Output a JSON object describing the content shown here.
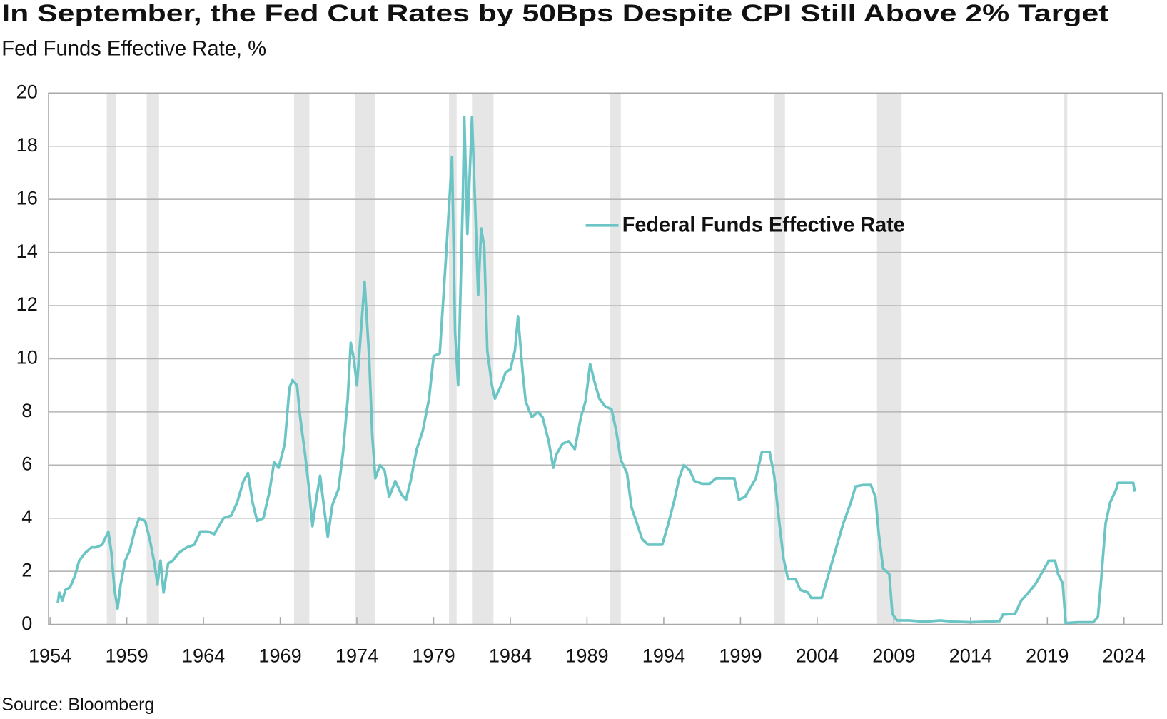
{
  "chart_data": {
    "type": "line",
    "title": "In September, the Fed Cut Rates by 50Bps Despite CPI Still Above 2% Target",
    "subtitle": "Fed Funds Effective Rate, %",
    "source": "Source: Bloomberg",
    "x": [
      1954.5,
      1954.6,
      1954.8,
      1955.0,
      1955.3,
      1955.6,
      1955.9,
      1956.3,
      1956.7,
      1957.0,
      1957.4,
      1957.8,
      1958.0,
      1958.2,
      1958.4,
      1958.6,
      1958.9,
      1959.2,
      1959.5,
      1959.8,
      1960.2,
      1960.5,
      1960.8,
      1961.0,
      1961.2,
      1961.4,
      1961.7,
      1962.0,
      1962.4,
      1962.9,
      1963.4,
      1963.8,
      1964.3,
      1964.7,
      1965.3,
      1965.8,
      1966.2,
      1966.6,
      1966.9,
      1967.2,
      1967.5,
      1967.9,
      1968.3,
      1968.6,
      1968.9,
      1969.3,
      1969.6,
      1969.8,
      1970.1,
      1970.3,
      1970.6,
      1970.9,
      1971.1,
      1971.4,
      1971.6,
      1971.9,
      1972.1,
      1972.4,
      1972.8,
      1973.1,
      1973.4,
      1973.6,
      1973.8,
      1974.0,
      1974.3,
      1974.5,
      1974.8,
      1975.0,
      1975.2,
      1975.5,
      1975.8,
      1976.1,
      1976.5,
      1976.9,
      1977.2,
      1977.5,
      1977.9,
      1978.3,
      1978.7,
      1979.0,
      1979.4,
      1979.8,
      1980.2,
      1980.4,
      1980.6,
      1980.9,
      1981.0,
      1981.2,
      1981.5,
      1981.7,
      1981.9,
      1982.1,
      1982.3,
      1982.5,
      1982.8,
      1983.0,
      1983.4,
      1983.7,
      1984.0,
      1984.3,
      1984.5,
      1984.8,
      1985.0,
      1985.4,
      1985.8,
      1986.1,
      1986.5,
      1986.8,
      1987.0,
      1987.4,
      1987.8,
      1988.2,
      1988.6,
      1988.9,
      1989.2,
      1989.5,
      1989.8,
      1990.2,
      1990.6,
      1990.9,
      1991.2,
      1991.6,
      1991.9,
      1992.2,
      1992.6,
      1993.0,
      1993.5,
      1993.9,
      1994.3,
      1994.7,
      1995.0,
      1995.3,
      1995.7,
      1996.0,
      1996.5,
      1997.0,
      1997.4,
      1998.0,
      1998.6,
      1998.9,
      1999.3,
      1999.7,
      2000.0,
      2000.4,
      2000.9,
      2001.2,
      2001.5,
      2001.8,
      2002.1,
      2002.6,
      2002.9,
      2003.4,
      2003.6,
      2004.3,
      2004.7,
      2005.2,
      2005.7,
      2006.2,
      2006.5,
      2007.0,
      2007.5,
      2007.8,
      2008.0,
      2008.3,
      2008.7,
      2008.9,
      2009.2,
      2010.0,
      2011.0,
      2012.0,
      2013.0,
      2014.0,
      2015.0,
      2015.9,
      2016.1,
      2016.9,
      2017.3,
      2017.7,
      2018.2,
      2018.7,
      2019.1,
      2019.5,
      2019.7,
      2020.0,
      2020.2,
      2021.0,
      2022.0,
      2022.3,
      2022.5,
      2022.8,
      2023.1,
      2023.5,
      2023.6,
      2024.0,
      2024.6,
      2024.7
    ],
    "series": [
      {
        "name": "Federal Funds Effective Rate",
        "color": "#6cc5c5",
        "values": [
          0.8,
          1.2,
          0.9,
          1.3,
          1.4,
          1.8,
          2.4,
          2.7,
          2.9,
          2.9,
          3.0,
          3.5,
          2.7,
          1.3,
          0.6,
          1.5,
          2.4,
          2.8,
          3.5,
          4.0,
          3.9,
          3.2,
          2.3,
          1.5,
          2.4,
          1.2,
          2.3,
          2.4,
          2.7,
          2.9,
          3.0,
          3.5,
          3.5,
          3.4,
          4.0,
          4.1,
          4.6,
          5.4,
          5.7,
          4.6,
          3.9,
          4.0,
          5.0,
          6.1,
          5.9,
          6.8,
          8.9,
          9.2,
          9.0,
          7.8,
          6.5,
          5.0,
          3.7,
          4.9,
          5.6,
          4.2,
          3.3,
          4.5,
          5.1,
          6.5,
          8.5,
          10.6,
          10.0,
          9.0,
          11.3,
          12.9,
          10.0,
          7.1,
          5.5,
          6.0,
          5.8,
          4.8,
          5.4,
          4.9,
          4.7,
          5.4,
          6.6,
          7.3,
          8.5,
          10.1,
          10.2,
          13.8,
          17.6,
          11.0,
          9.0,
          15.9,
          19.1,
          14.7,
          19.1,
          15.9,
          12.4,
          14.9,
          14.2,
          10.3,
          9.0,
          8.5,
          9.0,
          9.5,
          9.6,
          10.3,
          11.6,
          9.5,
          8.4,
          7.8,
          8.0,
          7.8,
          6.9,
          5.9,
          6.4,
          6.8,
          6.9,
          6.6,
          7.8,
          8.4,
          9.8,
          9.1,
          8.5,
          8.2,
          8.1,
          7.3,
          6.2,
          5.7,
          4.4,
          3.9,
          3.2,
          3.0,
          3.0,
          3.0,
          3.8,
          4.7,
          5.5,
          6.0,
          5.8,
          5.4,
          5.3,
          5.3,
          5.5,
          5.5,
          5.5,
          4.7,
          4.8,
          5.2,
          5.5,
          6.5,
          6.5,
          5.6,
          4.0,
          2.5,
          1.7,
          1.7,
          1.3,
          1.2,
          1.0,
          1.0,
          1.8,
          2.8,
          3.8,
          4.6,
          5.2,
          5.25,
          5.25,
          4.8,
          3.5,
          2.1,
          1.9,
          0.4,
          0.15,
          0.15,
          0.1,
          0.15,
          0.1,
          0.08,
          0.1,
          0.13,
          0.37,
          0.4,
          0.9,
          1.15,
          1.5,
          2.0,
          2.4,
          2.4,
          1.9,
          1.55,
          0.05,
          0.08,
          0.08,
          0.3,
          1.6,
          3.8,
          4.6,
          5.1,
          5.33,
          5.33,
          5.33,
          5.0
        ]
      }
    ],
    "recessions": [
      [
        1957.7,
        1958.3
      ],
      [
        1960.3,
        1961.1
      ],
      [
        1969.9,
        1970.9
      ],
      [
        1973.9,
        1975.2
      ],
      [
        1980.0,
        1980.5
      ],
      [
        1981.5,
        1982.9
      ],
      [
        1990.5,
        1991.2
      ],
      [
        2001.2,
        2001.9
      ],
      [
        2007.9,
        2009.5
      ],
      [
        2020.1,
        2020.3
      ]
    ],
    "recession_color": "#e6e6e6",
    "xlim": [
      1953.9,
      2026.5
    ],
    "xticks": [
      1954,
      1959,
      1964,
      1969,
      1974,
      1979,
      1984,
      1989,
      1994,
      1999,
      2004,
      2009,
      2014,
      2019,
      2024
    ],
    "ylim": [
      0,
      20
    ],
    "yticks": [
      0,
      2,
      4,
      6,
      8,
      10,
      12,
      14,
      16,
      18,
      20
    ],
    "grid": true,
    "legend": "upper-center"
  }
}
